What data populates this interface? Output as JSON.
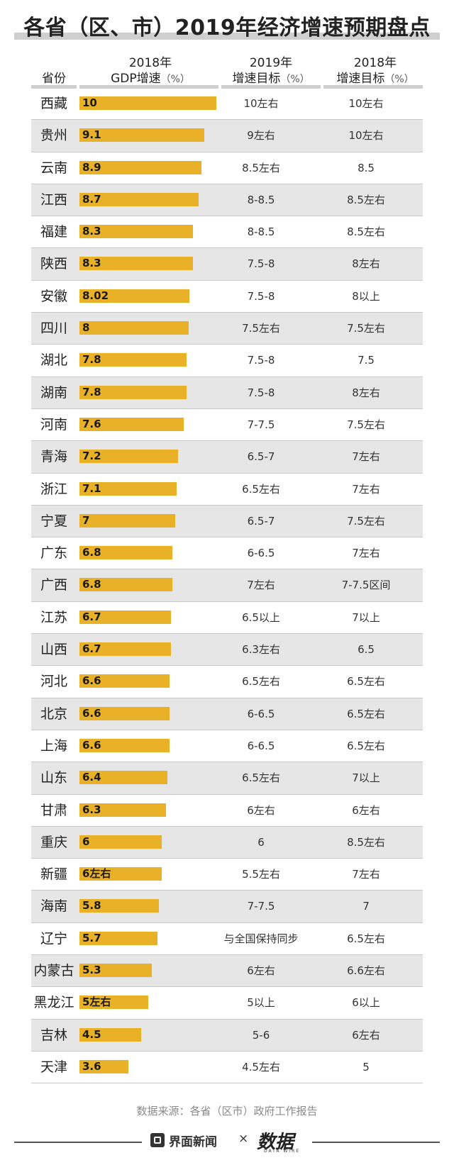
{
  "title": "各省（区、市）2019年经济增速预期盘点",
  "headers": {
    "province": "省份",
    "gdp_line1": "2018年",
    "gdp_line2": "GDP增速",
    "gdp_unit": "（%）",
    "target2019_line1": "2019年",
    "target2019_line2": "增速目标",
    "target2019_unit": "（%）",
    "target2018_line1": "2018年",
    "target2018_line2": "增速目标",
    "target2018_unit": "（%）"
  },
  "colors": {
    "bar": "#e8b128",
    "alt_row": "#e6e6e6"
  },
  "chart_data": {
    "type": "bar",
    "title": "各省（区、市）2019年经济增速预期盘点",
    "xlabel": "2018年GDP增速（%）",
    "ylabel": "省份",
    "categories": [
      "西藏",
      "贵州",
      "云南",
      "江西",
      "福建",
      "陕西",
      "安徽",
      "四川",
      "湖北",
      "湖南",
      "河南",
      "青海",
      "浙江",
      "宁夏",
      "广东",
      "广西",
      "江苏",
      "山西",
      "河北",
      "北京",
      "上海",
      "山东",
      "甘肃",
      "重庆",
      "新疆",
      "海南",
      "辽宁",
      "内蒙古",
      "黑龙江",
      "吉林",
      "天津"
    ],
    "values": [
      10,
      9.1,
      8.9,
      8.7,
      8.3,
      8.3,
      8.02,
      8,
      7.8,
      7.8,
      7.6,
      7.2,
      7.1,
      7,
      6.8,
      6.8,
      6.7,
      6.7,
      6.6,
      6.6,
      6.6,
      6.4,
      6.3,
      6,
      6,
      5.8,
      5.7,
      5.3,
      5,
      4.5,
      3.6
    ],
    "value_labels": [
      "10",
      "9.1",
      "8.9",
      "8.7",
      "8.3",
      "8.3",
      "8.02",
      "8",
      "7.8",
      "7.8",
      "7.6",
      "7.2",
      "7.1",
      "7",
      "6.8",
      "6.8",
      "6.7",
      "6.7",
      "6.6",
      "6.6",
      "6.6",
      "6.4",
      "6.3",
      "6",
      "6左右",
      "5.8",
      "5.7",
      "5.3",
      "5左右",
      "4.5",
      "3.6"
    ],
    "target_2019": [
      "10左右",
      "9左右",
      "8.5左右",
      "8-8.5",
      "8-8.5",
      "7.5-8",
      "7.5-8",
      "7.5左右",
      "7.5-8",
      "7.5-8",
      "7-7.5",
      "6.5-7",
      "6.5左右",
      "6.5-7",
      "6-6.5",
      "7左右",
      "6.5以上",
      "6.3左右",
      "6.5左右",
      "6-6.5",
      "6-6.5",
      "6.5左右",
      "6左右",
      "6",
      "5.5左右",
      "7-7.5",
      "与全国保持同步",
      "6左右",
      "5以上",
      "5-6",
      "4.5左右"
    ],
    "target_2018": [
      "10左右",
      "10左右",
      "8.5",
      "8.5左右",
      "8.5左右",
      "8左右",
      "8以上",
      "7.5左右",
      "7.5",
      "8左右",
      "7.5左右",
      "7左右",
      "7左右",
      "7.5左右",
      "7左右",
      "7-7.5区间",
      "7以上",
      "6.5",
      "6.5左右",
      "6.5左右",
      "6.5左右",
      "7以上",
      "6左右",
      "8.5左右",
      "7左右",
      "7",
      "6.5左右",
      "6.6左右",
      "6以上",
      "6左右",
      "5"
    ],
    "xlim": [
      0,
      10
    ]
  },
  "source": "数据来源：各省（区市）政府工作报告",
  "footer": {
    "brand": "界面新闻",
    "times": "×",
    "logo": "数据",
    "logo_sub": "DATA WIRE"
  }
}
